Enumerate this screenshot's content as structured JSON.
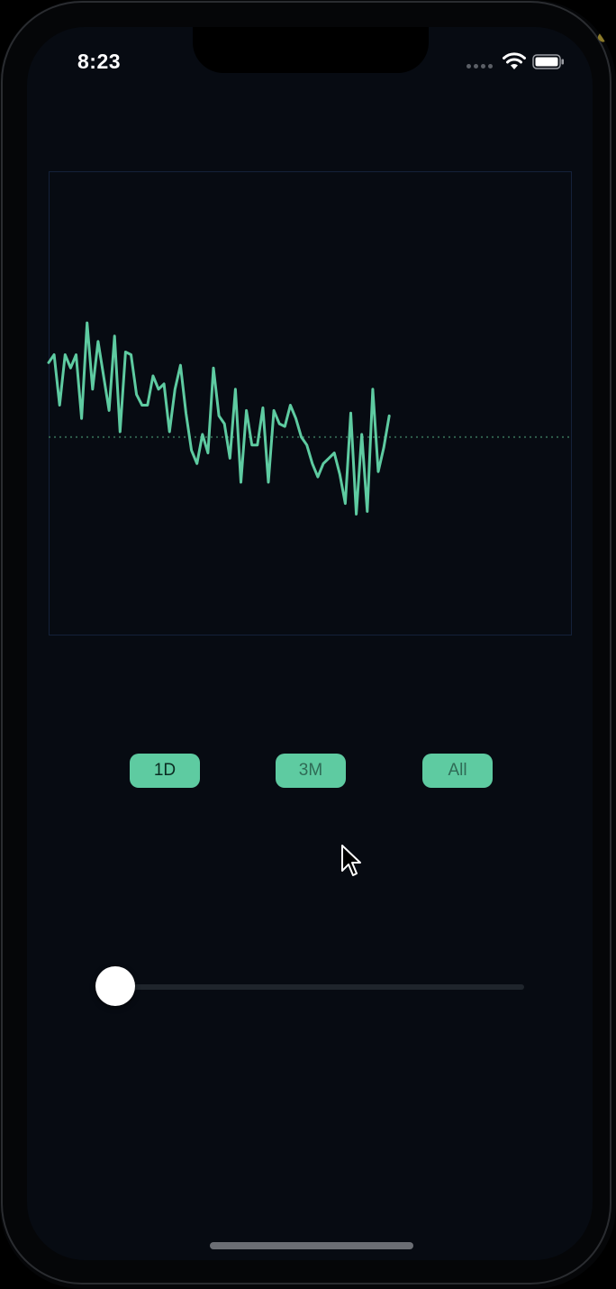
{
  "status_bar": {
    "time": "8:23"
  },
  "colors": {
    "line": "#5ecba1",
    "baseline_dots": "#2f5f4c",
    "frame": "#14213a",
    "button_bg": "#5ecba1",
    "background": "#070b12",
    "slider_thumb": "#ffffff",
    "slider_track": "#1f252c"
  },
  "range_buttons": [
    {
      "label": "1D",
      "icon": "none"
    },
    {
      "label": "3M",
      "icon": "none"
    },
    {
      "label": "All",
      "icon": "none"
    }
  ],
  "slider": {
    "value": 0.0
  },
  "chart_data": {
    "type": "line",
    "title": "",
    "xlabel": "",
    "ylabel": "",
    "baseline": 0,
    "ylim": [
      -0.75,
      1.0
    ],
    "xlim": [
      0,
      100
    ],
    "series": [
      {
        "values": [
          0.28,
          0.31,
          0.12,
          0.31,
          0.26,
          0.31,
          0.07,
          0.43,
          0.18,
          0.36,
          0.23,
          0.1,
          0.38,
          0.02,
          0.32,
          0.31,
          0.16,
          0.12,
          0.12,
          0.23,
          0.18,
          0.2,
          0.02,
          0.18,
          0.27,
          0.09,
          -0.05,
          -0.1,
          0.01,
          -0.06,
          0.26,
          0.08,
          0.05,
          -0.08,
          0.18,
          -0.17,
          0.1,
          -0.03,
          -0.03,
          0.11,
          -0.17,
          0.1,
          0.05,
          0.04,
          0.12,
          0.07,
          0.0,
          -0.03,
          -0.1,
          -0.15,
          -0.1,
          -0.08,
          -0.06,
          -0.14,
          -0.25,
          0.09,
          -0.29,
          0.01,
          -0.28,
          0.18,
          -0.13,
          -0.04,
          0.08
        ]
      }
    ]
  }
}
